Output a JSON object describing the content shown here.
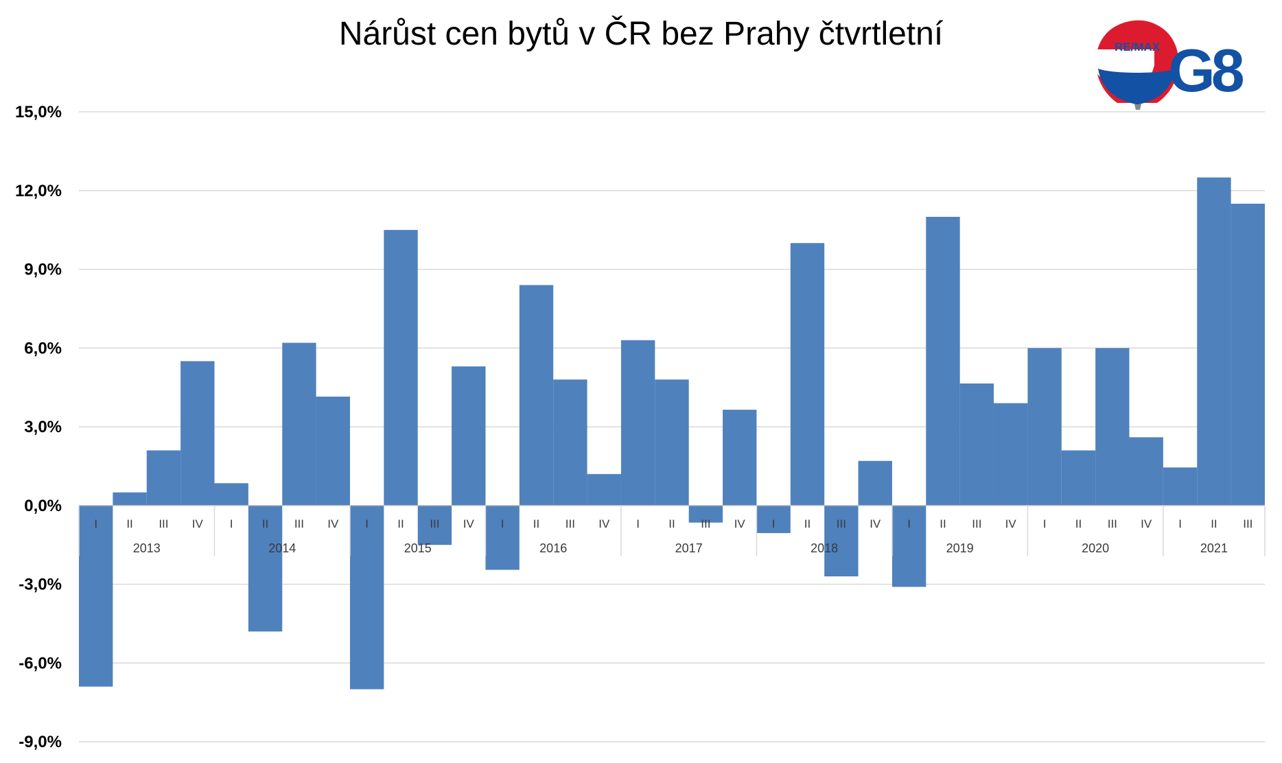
{
  "chart_data": {
    "type": "bar",
    "title": "Nárůst cen bytů v ČR bez Prahy čtvrtletní",
    "xlabel": "",
    "ylabel": "",
    "ylim": [
      -9,
      15
    ],
    "yticks": [
      15,
      12,
      9,
      6,
      3,
      0,
      -3,
      -6,
      -9
    ],
    "ytick_labels": [
      "15,0%",
      "12,0%",
      "9,0%",
      "6,0%",
      "3,0%",
      "0,0%",
      "-3,0%",
      "-6,0%",
      "-9,0%"
    ],
    "grid": true,
    "legend": "none",
    "bar_color": "#4f81bd",
    "groups": [
      {
        "year": "2013",
        "quarters": [
          "I",
          "II",
          "III",
          "IV"
        ],
        "values": [
          -6.9,
          0.5,
          2.1,
          5.5
        ]
      },
      {
        "year": "2014",
        "quarters": [
          "I",
          "II",
          "III",
          "IV"
        ],
        "values": [
          0.85,
          -4.8,
          6.2,
          4.15
        ]
      },
      {
        "year": "2015",
        "quarters": [
          "I",
          "II",
          "III",
          "IV"
        ],
        "values": [
          -7.0,
          10.5,
          -1.5,
          5.3
        ]
      },
      {
        "year": "2016",
        "quarters": [
          "I",
          "II",
          "III",
          "IV"
        ],
        "values": [
          -2.45,
          8.4,
          4.8,
          1.2
        ]
      },
      {
        "year": "2017",
        "quarters": [
          "I",
          "II",
          "III",
          "IV"
        ],
        "values": [
          6.3,
          4.8,
          -0.65,
          3.65
        ]
      },
      {
        "year": "2018",
        "quarters": [
          "I",
          "II",
          "III",
          "IV"
        ],
        "values": [
          -1.05,
          10.0,
          -2.7,
          1.7
        ]
      },
      {
        "year": "2019",
        "quarters": [
          "I",
          "II",
          "III",
          "IV"
        ],
        "values": [
          -3.1,
          11.0,
          4.65,
          3.9
        ]
      },
      {
        "year": "2020",
        "quarters": [
          "I",
          "II",
          "III",
          "IV"
        ],
        "values": [
          6.0,
          2.1,
          6.0,
          2.6
        ]
      },
      {
        "year": "2021",
        "quarters": [
          "I",
          "II",
          "III"
        ],
        "values": [
          1.45,
          12.5,
          11.5
        ]
      }
    ]
  },
  "logos": {
    "remax_text": "RE/MAX",
    "g8_text": "G8"
  }
}
